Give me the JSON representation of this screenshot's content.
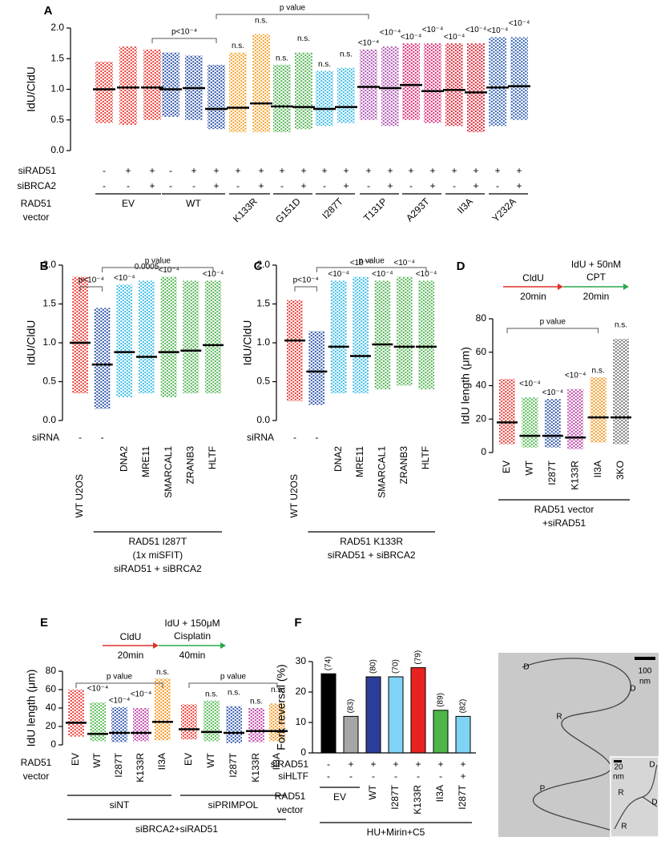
{
  "chart_data": [
    {
      "type": "dot",
      "panel_label": "A",
      "ylabel": "IdU/CldU",
      "ylim": [
        0,
        2
      ],
      "yticks": [
        {
          "value": 0,
          "label": "0.0"
        },
        {
          "value": 0.5,
          "label": "0.5"
        },
        {
          "value": 1,
          "label": "1.0"
        },
        {
          "value": 1.5,
          "label": "1.5"
        },
        {
          "value": 2,
          "label": "2.0"
        }
      ],
      "groups": [
        {
          "color": "#e8463f",
          "median": 1.0,
          "min": 0.45,
          "max": 1.45,
          "significance": null
        },
        {
          "color": "#e8463f",
          "median": 1.03,
          "min": 0.42,
          "max": 1.7,
          "significance": null
        },
        {
          "color": "#e8463f",
          "median": 1.03,
          "min": 0.5,
          "max": 1.65,
          "significance": null
        },
        {
          "color": "#3b5fae",
          "median": 1.0,
          "min": 0.55,
          "max": 1.6,
          "significance": null
        },
        {
          "color": "#3b5fae",
          "median": 1.02,
          "min": 0.5,
          "max": 1.55,
          "significance": null
        },
        {
          "color": "#3b5fae",
          "median": 0.68,
          "min": 0.35,
          "max": 1.4,
          "significance": null
        },
        {
          "color": "#f4a93c",
          "median": 0.7,
          "min": 0.3,
          "max": 1.6,
          "significance": "n.s."
        },
        {
          "color": "#f4a93c",
          "median": 0.77,
          "min": 0.3,
          "max": 1.9,
          "significance": "n.s."
        },
        {
          "color": "#5cb85c",
          "median": 0.72,
          "min": 0.3,
          "max": 1.4,
          "significance": "n.s."
        },
        {
          "color": "#5cb85c",
          "median": 0.71,
          "min": 0.35,
          "max": 1.6,
          "significance": "n.s."
        },
        {
          "color": "#45bfe6",
          "median": 0.68,
          "min": 0.4,
          "max": 1.3,
          "significance": "n.s."
        },
        {
          "color": "#45bfe6",
          "median": 0.71,
          "min": 0.45,
          "max": 1.35,
          "significance": "n.s."
        },
        {
          "color": "#b65db9",
          "median": 1.04,
          "min": 0.5,
          "max": 1.65,
          "significance": "<10⁻⁴"
        },
        {
          "color": "#b65db9",
          "median": 1.02,
          "min": 0.4,
          "max": 1.7,
          "significance": "<10⁻⁴"
        },
        {
          "color": "#e0367f",
          "median": 1.07,
          "min": 0.5,
          "max": 1.75,
          "significance": "<10⁻⁴"
        },
        {
          "color": "#e0367f",
          "median": 0.97,
          "min": 0.45,
          "max": 1.75,
          "significance": "<10⁻⁴"
        },
        {
          "color": "#e23040",
          "median": 0.99,
          "min": 0.4,
          "max": 1.75,
          "significance": "<10⁻⁴"
        },
        {
          "color": "#e23040",
          "median": 0.95,
          "min": 0.3,
          "max": 1.75,
          "significance": "<10⁻⁴"
        },
        {
          "color": "#3d6bb8",
          "median": 1.03,
          "min": 0.4,
          "max": 1.85,
          "significance": "<10⁻⁴"
        },
        {
          "color": "#3d6bb8",
          "median": 1.05,
          "min": 0.5,
          "max": 1.85,
          "significance": "<10⁻⁴"
        }
      ],
      "rows": [
        {
          "label": "siRAD51",
          "values": [
            "-",
            "+",
            "+",
            "-",
            "+",
            "+",
            "+",
            "+",
            "+",
            "+",
            "+",
            "+",
            "+",
            "+",
            "+",
            "+",
            "+",
            "+",
            "+",
            "+"
          ]
        },
        {
          "label": "siBRCA2",
          "values": [
            "-",
            "-",
            "+",
            "-",
            "-",
            "+",
            "-",
            "+",
            "-",
            "+",
            "-",
            "+",
            "-",
            "+",
            "-",
            "+",
            "-",
            "+",
            "-",
            "+"
          ]
        }
      ],
      "label_title": [
        "RAD51",
        "vector"
      ],
      "footers": [
        {
          "from": 0,
          "to": 2,
          "lines": [
            "EV"
          ]
        },
        {
          "from": 3,
          "to": 5,
          "lines": [
            "WT"
          ]
        },
        {
          "from": 6,
          "to": 7,
          "lines": [
            "K133R"
          ]
        },
        {
          "from": 8,
          "to": 9,
          "lines": [
            "G151D"
          ]
        },
        {
          "from": 10,
          "to": 11,
          "lines": [
            "I287T"
          ]
        },
        {
          "from": 12,
          "to": 13,
          "lines": [
            "T131P"
          ]
        },
        {
          "from": 14,
          "to": 15,
          "lines": [
            "A293T"
          ]
        },
        {
          "from": 16,
          "to": 17,
          "lines": [
            "II3A"
          ]
        },
        {
          "from": 18,
          "to": 19,
          "lines": [
            "Y232A"
          ]
        }
      ],
      "brackets": [
        {
          "text": "p<10⁻⁴",
          "from": 2,
          "to": 5
        },
        {
          "text": "p value",
          "from": 5,
          "to": 12
        }
      ]
    },
    {
      "type": "dot",
      "panel_label": "B",
      "ylabel": "IdU/CldU",
      "ylim": [
        0,
        2
      ],
      "yticks": [
        {
          "value": 0,
          "label": "0.0"
        },
        {
          "value": 0.5,
          "label": "0.5"
        },
        {
          "value": 1,
          "label": "1.0"
        },
        {
          "value": 1.5,
          "label": "1.5"
        },
        {
          "value": 2,
          "label": "2.0"
        }
      ],
      "groups": [
        {
          "color": "#e8463f",
          "median": 1.0,
          "min": 0.35,
          "max": 1.85,
          "significance": null
        },
        {
          "color": "#3b5fae",
          "median": 0.72,
          "min": 0.15,
          "max": 1.45,
          "significance": null
        },
        {
          "color": "#45bfe6",
          "median": 0.88,
          "min": 0.3,
          "max": 1.75,
          "significance": "<10⁻⁴"
        },
        {
          "color": "#45bfe6",
          "median": 0.82,
          "min": 0.35,
          "max": 1.8,
          "significance": "0.0005"
        },
        {
          "color": "#5cb85c",
          "median": 0.88,
          "min": 0.3,
          "max": 1.85,
          "significance": "<10⁻⁴"
        },
        {
          "color": "#5cb85c",
          "median": 0.9,
          "min": 0.35,
          "max": 1.8,
          "significance": null
        },
        {
          "color": "#5cb85c",
          "median": 0.97,
          "min": 0.35,
          "max": 1.8,
          "significance": "<10⁻⁴"
        }
      ],
      "rows": [
        {
          "label": "siRNA",
          "values": [
            "-",
            "-",
            "DNA2",
            "MRE11",
            "SMARCAL1",
            "ZRANB3",
            "HLTF"
          ]
        }
      ],
      "x_labels": [
        "WT U2OS",
        null,
        null,
        null,
        null,
        null,
        null
      ],
      "footers": [
        {
          "from": 1,
          "to": 6,
          "lines": [
            "RAD51 I287T",
            "(1x miSFIT)",
            "siRAD51 + siBRCA2"
          ]
        }
      ],
      "brackets": [
        {
          "text": "p<10⁻⁴",
          "from": 0,
          "to": 1
        },
        {
          "text": "p value",
          "from": 1,
          "to": 6
        }
      ]
    },
    {
      "type": "dot",
      "panel_label": "C",
      "ylabel": "IdU/CldU",
      "ylim": [
        0,
        2
      ],
      "yticks": [
        {
          "value": 0,
          "label": "0.0"
        },
        {
          "value": 0.5,
          "label": "0.5"
        },
        {
          "value": 1,
          "label": "1.0"
        },
        {
          "value": 1.5,
          "label": "1.5"
        },
        {
          "value": 2,
          "label": "2.0"
        }
      ],
      "groups": [
        {
          "color": "#e8463f",
          "median": 1.03,
          "min": 0.25,
          "max": 1.55,
          "significance": null
        },
        {
          "color": "#3b5fae",
          "median": 0.63,
          "min": 0.2,
          "max": 1.15,
          "significance": null
        },
        {
          "color": "#45bfe6",
          "median": 0.95,
          "min": 0.35,
          "max": 1.8,
          "significance": "<10⁻⁴"
        },
        {
          "color": "#45bfe6",
          "median": 0.83,
          "min": 0.35,
          "max": 1.85,
          "significance": "<10⁻⁴"
        },
        {
          "color": "#5cb85c",
          "median": 0.98,
          "min": 0.4,
          "max": 1.8,
          "significance": "<10⁻⁴"
        },
        {
          "color": "#5cb85c",
          "median": 0.95,
          "min": 0.45,
          "max": 1.85,
          "significance": "<10⁻⁴"
        },
        {
          "color": "#5cb85c",
          "median": 0.95,
          "min": 0.4,
          "max": 1.8,
          "significance": "<10⁻⁴"
        }
      ],
      "rows": [
        {
          "label": "siRNA",
          "values": [
            "-",
            "-",
            "DNA2",
            "MRE11",
            "SMARCAL1",
            "ZRANB3",
            "HLTF"
          ]
        }
      ],
      "x_labels": [
        "WT U2OS",
        null,
        null,
        null,
        null,
        null,
        null
      ],
      "footers": [
        {
          "from": 1,
          "to": 6,
          "lines": [
            "RAD51 K133R",
            "siRAD51 + siBRCA2"
          ]
        }
      ],
      "brackets": [
        {
          "text": "p<10⁻⁴",
          "from": 0,
          "to": 1
        },
        {
          "text": "p value",
          "from": 1,
          "to": 6
        }
      ]
    },
    {
      "type": "dot",
      "panel_label": "D",
      "ylabel": "IdU length (μm)",
      "ylim": [
        0,
        80
      ],
      "yticks": [
        0,
        20,
        40,
        60,
        80
      ],
      "groups": [
        {
          "color": "#e8463f",
          "median": 18,
          "min": 5,
          "max": 44,
          "significance": null
        },
        {
          "color": "#5cbd5a",
          "median": 10,
          "min": 3,
          "max": 33,
          "significance": "<10⁻⁴"
        },
        {
          "color": "#3d5fb0",
          "median": 10,
          "min": 3,
          "max": 32,
          "significance": "<10⁻⁴"
        },
        {
          "color": "#c04caa",
          "median": 9,
          "min": 2,
          "max": 38,
          "significance": "<10⁻⁴"
        },
        {
          "color": "#f39c2a",
          "median": 21,
          "min": 6,
          "max": 45,
          "significance": "n.s."
        },
        {
          "color": "#7d7d7d",
          "median": 21,
          "min": 5,
          "max": 68,
          "significance": "n.s."
        }
      ],
      "x_labels": [
        "EV",
        "WT",
        "I287T",
        "K133R",
        "II3A",
        "3KO"
      ],
      "footers": [
        {
          "from": 0,
          "to": 5,
          "lines": [
            "RAD51 vector",
            "+siRAD51"
          ]
        }
      ],
      "brackets": [
        {
          "text": "p value",
          "from": 0,
          "to": 4
        }
      ],
      "schematic": {
        "first": "CldU",
        "first_time": "20min",
        "second": [
          "IdU + 50nM",
          "CPT"
        ],
        "second_time": "20min"
      }
    },
    {
      "type": "dot",
      "panel_label": "E",
      "ylabel": "IdU length (μm)",
      "ylim": [
        0,
        80
      ],
      "yticks": [
        0,
        20,
        40,
        60,
        80
      ],
      "groups": [
        {
          "color": "#e8463f",
          "median": 24,
          "min": 9,
          "max": 60,
          "significance": null
        },
        {
          "color": "#5cbd5a",
          "median": 12,
          "min": 4,
          "max": 46,
          "significance": "<10⁻⁴"
        },
        {
          "color": "#3d5fb0",
          "median": 13,
          "min": 3,
          "max": 41,
          "significance": "<10⁻⁴"
        },
        {
          "color": "#c04caa",
          "median": 13,
          "min": 4,
          "max": 40,
          "significance": "<10⁻⁴"
        },
        {
          "color": "#f39c2a",
          "median": 25,
          "min": 5,
          "max": 72,
          "significance": "n.s."
        },
        {
          "color": "#e8463f",
          "median": 17,
          "min": 6,
          "max": 44,
          "significance": null
        },
        {
          "color": "#5cbd5a",
          "median": 14,
          "min": 4,
          "max": 48,
          "significance": "n.s."
        },
        {
          "color": "#3d5fb0",
          "median": 13,
          "min": 2,
          "max": 42,
          "significance": "n.s."
        },
        {
          "color": "#c04caa",
          "median": 15,
          "min": 3,
          "max": 40,
          "significance": "n.s."
        },
        {
          "color": "#f39c2a",
          "median": 15,
          "min": 4,
          "max": 45,
          "significance": "n.s."
        }
      ],
      "label_title": [
        "RAD51",
        "vector"
      ],
      "x_labels": [
        "EV",
        "WT",
        "I287T",
        "K133R",
        "II3A",
        "EV",
        "WT",
        "I287T",
        "K133R",
        "II3A"
      ],
      "footers": [
        {
          "from": 0,
          "to": 4,
          "lines": [
            "siNT"
          ]
        },
        {
          "from": 5,
          "to": 9,
          "lines": [
            "siPRIMPOL"
          ]
        },
        {
          "from": 0,
          "to": 9,
          "lines": [
            "siBRCA2+siRAD51"
          ]
        }
      ],
      "brackets": [
        {
          "text": "p value",
          "from": 0,
          "to": 4
        },
        {
          "text": "p value",
          "from": 5,
          "to": 9
        }
      ],
      "schematic": {
        "first": "CldU",
        "first_time": "20min",
        "second": [
          "IdU + 150μM",
          "Cisplatin"
        ],
        "second_time": "40min"
      }
    },
    {
      "type": "bar",
      "panel_label": "F",
      "ylabel": "Fork reversal (%)",
      "ylim": [
        0,
        30
      ],
      "yticks": [
        0,
        10,
        20,
        30
      ],
      "colors": [
        "#000000",
        "#a6a6a6",
        "#2b3f9a",
        "#7fd3f5",
        "#e8231f",
        "#4cb649",
        "#7fd3f5"
      ],
      "values": [
        26,
        12,
        25,
        25,
        28,
        14,
        12
      ],
      "n_labels": [
        "(74)",
        "(83)",
        "(80)",
        "(70)",
        "(79)",
        "(89)",
        "(82)"
      ],
      "rows": [
        {
          "label": "siRAD51",
          "values": [
            "-",
            "+",
            "+",
            "+",
            "+",
            "+",
            "+"
          ]
        },
        {
          "label": "siHLTF",
          "values": [
            "-",
            "-",
            "-",
            "-",
            "-",
            "-",
            "+"
          ]
        }
      ],
      "label_title": [
        "RAD51",
        "vector"
      ],
      "x_labels": [
        null,
        null,
        "WT",
        "I287T",
        "K133R",
        "II3A",
        "I287T"
      ],
      "footers": [
        {
          "from": 0,
          "to": 1,
          "lines": [
            "EV"
          ]
        },
        {
          "from": 0,
          "to": 6,
          "lines": [
            "HU+Mirin+C5"
          ]
        }
      ]
    },
    {
      "type": "image",
      "labels": [
        "D",
        "D",
        "R",
        "P",
        "100",
        "nm",
        "20",
        "nm",
        "D",
        "R",
        "D",
        "R"
      ]
    }
  ]
}
